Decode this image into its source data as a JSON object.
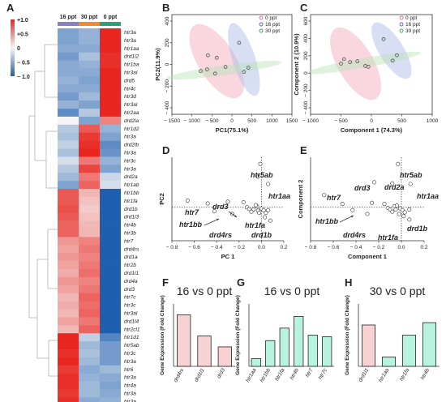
{
  "panels": {
    "A": "A",
    "B": "B",
    "C": "C",
    "D": "D",
    "E": "E",
    "F": "F",
    "G": "G",
    "H": "H"
  },
  "chart_data": [
    {
      "id": "A",
      "type": "heatmap",
      "columns": [
        "16 ppt",
        "30 ppt",
        "0 ppt"
      ],
      "column_colors": [
        "#8b7fc2",
        "#f08a2c",
        "#2aa37a"
      ],
      "color_scale": {
        "ticks": [
          "+1.0",
          "+0.5",
          "0",
          "− 0.5",
          "− 1.0"
        ],
        "low": "#1f5fb0",
        "mid": "#f5f5f5",
        "high": "#e8251f"
      },
      "rows": [
        {
          "gene": "htr3a",
          "values": [
            -0.55,
            -0.45,
            1.0
          ]
        },
        {
          "gene": "htr3a",
          "values": [
            -0.55,
            -0.45,
            1.0
          ]
        },
        {
          "gene": "htr1aa",
          "values": [
            -0.5,
            -0.5,
            1.0
          ]
        },
        {
          "gene": "drd1l2",
          "values": [
            -0.6,
            -0.35,
            0.95
          ]
        },
        {
          "gene": "htr1ba",
          "values": [
            -0.5,
            -0.45,
            0.95
          ]
        },
        {
          "gene": "htr3al",
          "values": [
            -0.5,
            -0.5,
            1.0
          ]
        },
        {
          "gene": "drd5",
          "values": [
            -0.45,
            -0.55,
            1.0
          ]
        },
        {
          "gene": "htr4c",
          "values": [
            -0.5,
            -0.5,
            1.0
          ]
        },
        {
          "gene": "htr3d",
          "values": [
            -0.6,
            -0.4,
            1.0
          ]
        },
        {
          "gene": "htr3al",
          "values": [
            -0.45,
            -0.55,
            1.0
          ]
        },
        {
          "gene": "htr2aa",
          "values": [
            -0.7,
            -0.3,
            1.0
          ]
        },
        {
          "gene": "drd2la",
          "values": [
            0.0,
            -0.55,
            0.55
          ]
        },
        {
          "gene": "htr1d2",
          "values": [
            -0.3,
            0.75,
            -0.45
          ]
        },
        {
          "gene": "htr3a",
          "values": [
            -0.35,
            0.9,
            -0.55
          ]
        },
        {
          "gene": "drd2lb",
          "values": [
            -0.25,
            0.95,
            -0.7
          ]
        },
        {
          "gene": "htr3a",
          "values": [
            -0.35,
            1.0,
            -0.65
          ]
        },
        {
          "gene": "htr3c",
          "values": [
            -0.15,
            0.6,
            -0.45
          ]
        },
        {
          "gene": "htr3a",
          "values": [
            -0.3,
            0.85,
            -0.55
          ]
        },
        {
          "gene": "drd2a",
          "values": [
            -0.4,
            0.6,
            -0.2
          ]
        },
        {
          "gene": "htr1ab",
          "values": [
            -0.55,
            0.7,
            -0.15
          ]
        },
        {
          "gene": "htr1bb",
          "values": [
            0.75,
            0.3,
            -1.0
          ]
        },
        {
          "gene": "htr1fa",
          "values": [
            0.75,
            0.25,
            -1.0
          ]
        },
        {
          "gene": "drd1b",
          "values": [
            0.8,
            0.2,
            -1.0
          ]
        },
        {
          "gene": "drd1l3",
          "values": [
            0.75,
            0.25,
            -1.0
          ]
        },
        {
          "gene": "htr4b",
          "values": [
            0.7,
            0.3,
            -1.0
          ]
        },
        {
          "gene": "htr3b",
          "values": [
            0.7,
            0.3,
            -1.0
          ]
        },
        {
          "gene": "htr7",
          "values": [
            0.45,
            0.55,
            -1.0
          ]
        },
        {
          "gene": "drd4rs",
          "values": [
            0.4,
            0.6,
            -1.0
          ]
        },
        {
          "gene": "drd1a",
          "values": [
            0.45,
            0.55,
            -1.0
          ]
        },
        {
          "gene": "htr2b",
          "values": [
            0.4,
            0.6,
            -1.0
          ]
        },
        {
          "gene": "drd1l1",
          "values": [
            0.35,
            0.65,
            -1.0
          ]
        },
        {
          "gene": "drd4a",
          "values": [
            0.45,
            0.55,
            -1.0
          ]
        },
        {
          "gene": "drd3",
          "values": [
            0.4,
            0.6,
            -1.0
          ]
        },
        {
          "gene": "htr7c",
          "values": [
            0.3,
            0.7,
            -1.0
          ]
        },
        {
          "gene": "htr3c",
          "values": [
            0.35,
            0.65,
            -1.0
          ]
        },
        {
          "gene": "htr3al",
          "values": [
            0.3,
            0.7,
            -1.0
          ]
        },
        {
          "gene": "drd1l4",
          "values": [
            0.4,
            0.6,
            -1.0
          ]
        },
        {
          "gene": "htr2cl1",
          "values": [
            0.3,
            0.7,
            -1.0
          ]
        },
        {
          "gene": "htr1d1",
          "values": [
            1.0,
            -0.25,
            -0.75
          ]
        },
        {
          "gene": "htr5ab",
          "values": [
            1.0,
            -0.4,
            -0.6
          ]
        },
        {
          "gene": "htr3c",
          "values": [
            0.95,
            -0.35,
            -0.6
          ]
        },
        {
          "gene": "htr3a",
          "values": [
            1.0,
            -0.4,
            -0.6
          ]
        },
        {
          "gene": "htr6",
          "values": [
            0.9,
            -0.5,
            -0.4
          ]
        },
        {
          "gene": "htr3a",
          "values": [
            0.95,
            -0.45,
            -0.5
          ]
        },
        {
          "gene": "htr4a",
          "values": [
            0.95,
            -0.4,
            -0.55
          ]
        },
        {
          "gene": "htr3a",
          "values": [
            0.9,
            -0.4,
            -0.5
          ]
        },
        {
          "gene": "htr3a",
          "values": [
            0.95,
            -0.5,
            -0.45
          ]
        }
      ]
    },
    {
      "id": "B",
      "type": "scatter",
      "xlabel": "PC1(75.1%)",
      "ylabel": "PC2(11.9%)",
      "xlim": [
        -1500,
        1500
      ],
      "ylim": [
        -600,
        600
      ],
      "xticks": [
        "− 1500",
        "− 1000",
        "− 500",
        "0",
        "500",
        "1000",
        "1500"
      ],
      "yticks": [
        "400",
        "200",
        "0",
        "− 200",
        "− 400"
      ],
      "legend": [
        {
          "name": "0 ppt",
          "color": "#e86c86"
        },
        {
          "name": "16 ppt",
          "color": "#4a5fb5"
        },
        {
          "name": "30 ppt",
          "color": "#3a9a55"
        }
      ],
      "series": [
        {
          "name": "0 ppt",
          "color": "#e86c86",
          "points": [
            [
              -600,
              110
            ],
            [
              -380,
              80
            ],
            [
              -160,
              -30
            ]
          ]
        },
        {
          "name": "16 ppt",
          "color": "#4a5fb5",
          "points": [
            [
              180,
              260
            ],
            [
              410,
              -40
            ],
            [
              300,
              -90
            ]
          ]
        },
        {
          "name": "30 ppt",
          "color": "#3a9a55",
          "points": [
            [
              -780,
              -80
            ],
            [
              -620,
              -60
            ],
            [
              -420,
              -110
            ]
          ]
        }
      ]
    },
    {
      "id": "C",
      "type": "scatter",
      "xlabel": "Component 1 (74.3%)",
      "ylabel": "Component 2 (10.9%)",
      "xlim": [
        -1000,
        1000
      ],
      "ylim": [
        -600,
        700
      ],
      "xticks": [
        "− 1000",
        "− 500",
        "0",
        "500",
        "1000"
      ],
      "yticks": [
        "600",
        "400",
        "200",
        "0",
        "− 200",
        "− 400"
      ],
      "legend": [
        {
          "name": "0 ppt",
          "color": "#e86c86"
        },
        {
          "name": "16 ppt",
          "color": "#4a5fb5"
        },
        {
          "name": "30 ppt",
          "color": "#3a9a55"
        }
      ],
      "series": [
        {
          "name": "0 ppt",
          "color": "#e86c86",
          "points": [
            [
              -450,
              120
            ],
            [
              -230,
              90
            ],
            [
              -50,
              20
            ]
          ]
        },
        {
          "name": "16 ppt",
          "color": "#4a5fb5",
          "points": [
            [
              200,
              380
            ],
            [
              420,
              170
            ],
            [
              350,
              100
            ]
          ]
        },
        {
          "name": "30 ppt",
          "color": "#3a9a55",
          "points": [
            [
              -500,
              60
            ],
            [
              -350,
              80
            ],
            [
              -100,
              30
            ]
          ]
        }
      ]
    },
    {
      "id": "D",
      "type": "scatter",
      "xlabel": "PC 1",
      "ylabel": "PC2",
      "xlim": [
        -0.8,
        0.2
      ],
      "ylim": [
        -0.6,
        0.9
      ],
      "xticks": [
        "− 0.8",
        "− 0.6",
        "− 0.4",
        "− 0.2",
        "0.0",
        "0.2"
      ],
      "annotations": [
        "htr5ab",
        "htr1aa",
        "drd3",
        "htr7",
        "htr1bb",
        "htr1fa",
        "drd4rs",
        "drd1b"
      ],
      "points": [
        [
          -0.01,
          0.78
        ],
        [
          -0.03,
          0.55
        ],
        [
          0.06,
          0.42
        ],
        [
          -0.66,
          0.12
        ],
        [
          -0.48,
          0.07
        ],
        [
          -0.3,
          0.1
        ],
        [
          -0.16,
          0.09
        ],
        [
          -0.04,
          0.02
        ],
        [
          -0.13,
          0.0
        ],
        [
          -0.11,
          -0.03
        ],
        [
          -0.07,
          -0.04
        ],
        [
          -0.03,
          -0.06
        ],
        [
          0.0,
          -0.02
        ],
        [
          0.02,
          -0.05
        ],
        [
          0.04,
          -0.1
        ],
        [
          0.06,
          -0.05
        ],
        [
          -0.02,
          -0.1
        ],
        [
          -0.09,
          -0.08
        ],
        [
          -0.42,
          -0.07
        ],
        [
          -0.26,
          -0.12
        ],
        [
          0.03,
          -0.18
        ],
        [
          0.08,
          -0.24
        ],
        [
          -0.05,
          0.04
        ]
      ]
    },
    {
      "id": "E",
      "type": "scatter",
      "xlabel": "Component 1",
      "ylabel": "Component 2",
      "xlim": [
        -0.8,
        0.2
      ],
      "ylim": [
        -0.6,
        0.9
      ],
      "xticks": [
        "− 0.8",
        "− 0.6",
        "− 0.4",
        "− 0.2",
        "0.0",
        "0.2"
      ],
      "annotations": [
        "htr5ab",
        "drd3",
        "drd2a",
        "htr1aa",
        "htr7",
        "htr1bb",
        "drd4rs",
        "htr1fa",
        "drd1b"
      ],
      "points": [
        [
          -0.03,
          0.78
        ],
        [
          -0.24,
          0.45
        ],
        [
          -0.08,
          0.43
        ],
        [
          0.08,
          0.42
        ],
        [
          -0.68,
          0.22
        ],
        [
          -0.52,
          0.06
        ],
        [
          -0.26,
          0.08
        ],
        [
          -0.15,
          0.06
        ],
        [
          -0.06,
          0.02
        ],
        [
          -0.12,
          -0.01
        ],
        [
          -0.1,
          -0.04
        ],
        [
          -0.05,
          -0.04
        ],
        [
          -0.01,
          -0.02
        ],
        [
          0.01,
          -0.05
        ],
        [
          0.03,
          -0.09
        ],
        [
          0.07,
          -0.04
        ],
        [
          -0.02,
          -0.12
        ],
        [
          -0.08,
          -0.08
        ],
        [
          -0.43,
          -0.05
        ],
        [
          -0.3,
          -0.12
        ],
        [
          0.02,
          -0.16
        ],
        [
          0.07,
          -0.22
        ],
        [
          -0.04,
          0.03
        ]
      ]
    },
    {
      "id": "F",
      "type": "bar",
      "title": "16 vs 0 ppt",
      "ylabel": "Gene Expression (Fold Change)",
      "ylim": [
        0,
        4
      ],
      "yticks": [
        "4",
        "3",
        "2",
        "1",
        "0"
      ],
      "color": "#f8d2d2",
      "categories": [
        "drd4rs",
        "drd1l1",
        "drd3"
      ],
      "values": [
        3.3,
        1.95,
        1.25
      ]
    },
    {
      "id": "G",
      "type": "bar",
      "title": "16 vs 0 ppt",
      "ylabel": "Gene Expression (Fold Change)",
      "ylim": [
        0,
        4
      ],
      "yticks": [
        "4",
        "3",
        "2",
        "1",
        "0"
      ],
      "color": "#b8f2e0",
      "categories": [
        "htr1aa",
        "htr1bb",
        "htr1fa",
        "htr4b",
        "htr7",
        "htr7c"
      ],
      "values": [
        0.5,
        1.65,
        2.45,
        3.2,
        2.0,
        1.9
      ]
    },
    {
      "id": "H",
      "type": "bar",
      "title": "30 vs 0 ppt",
      "ylabel": "Gene Expression (Fold Change)",
      "ylim": [
        0,
        4
      ],
      "yticks": [
        "4",
        "3",
        "2",
        "1",
        "0"
      ],
      "colors": [
        "#f8d2d2",
        "#b8f2e0",
        "#b8f2e0",
        "#b8f2e0"
      ],
      "categories": [
        "drd1l1",
        "htr1aa",
        "htr1fa",
        "htr4b"
      ],
      "values": [
        2.65,
        0.6,
        2.0,
        2.8
      ]
    }
  ]
}
